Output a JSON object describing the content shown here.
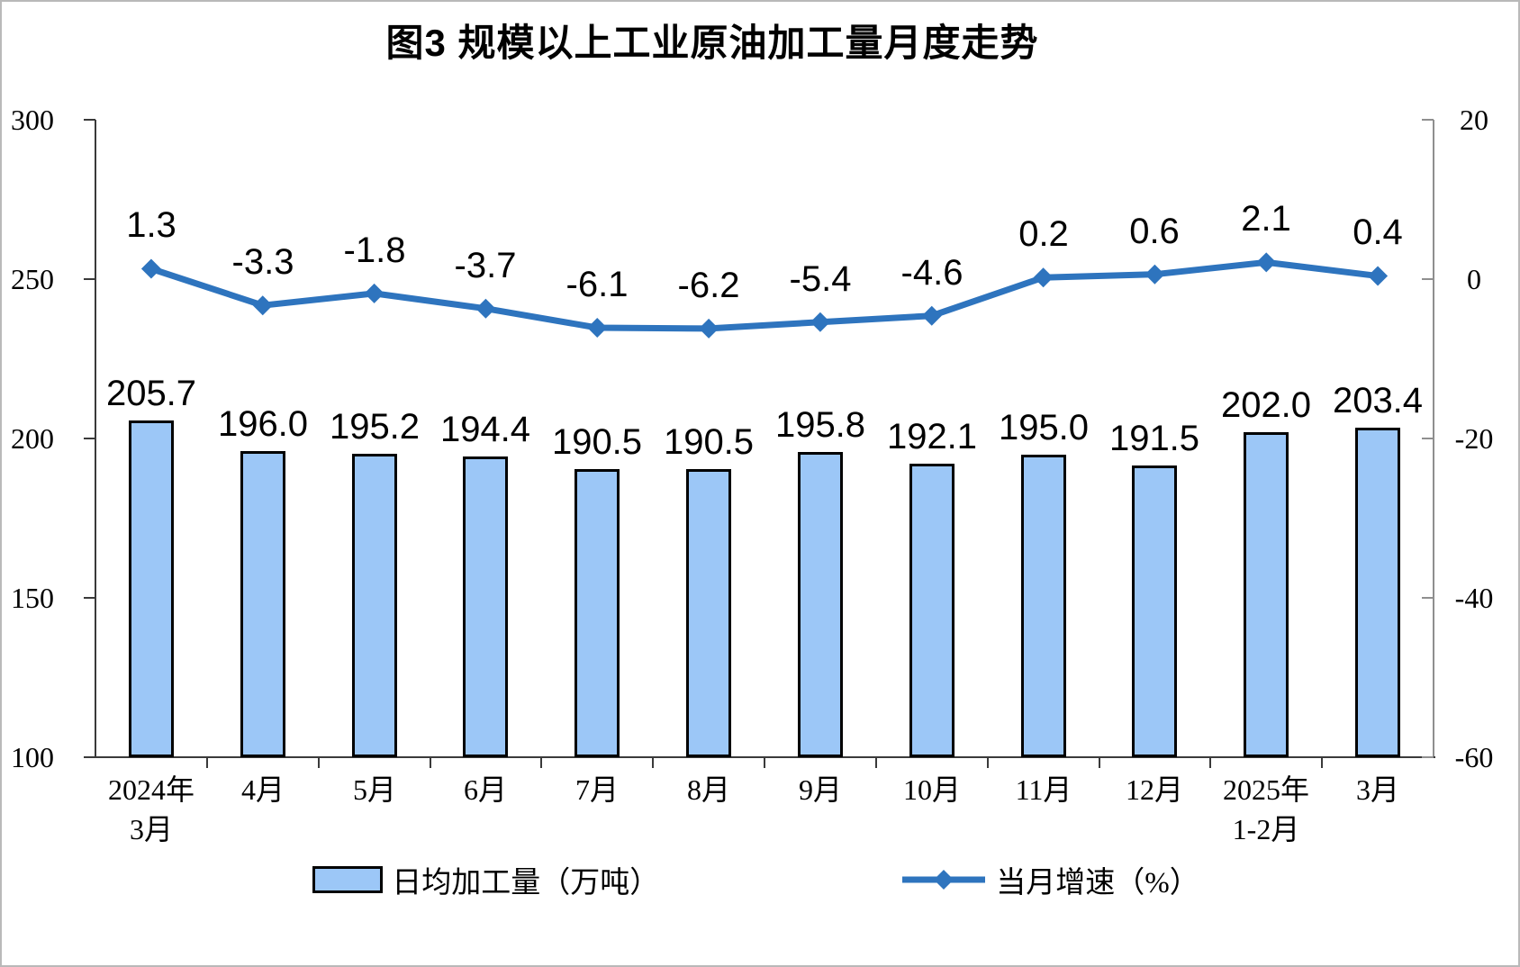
{
  "title": "图3 规模以上工业原油加工量月度走势",
  "chart_data": {
    "type": "combo-bar-line",
    "title": "图3 规模以上工业原油加工量月度走势",
    "categories": [
      [
        "2024年",
        "3月"
      ],
      [
        "4月"
      ],
      [
        "5月"
      ],
      [
        "6月"
      ],
      [
        "7月"
      ],
      [
        "8月"
      ],
      [
        "9月"
      ],
      [
        "10月"
      ],
      [
        "11月"
      ],
      [
        "12月"
      ],
      [
        "2025年",
        "1-2月"
      ],
      [
        "3月"
      ]
    ],
    "series": [
      {
        "name": "日均加工量（万吨）",
        "type": "bar",
        "axis": "left",
        "values": [
          205.7,
          196.0,
          195.2,
          194.4,
          190.5,
          190.5,
          195.8,
          192.1,
          195.0,
          191.5,
          202.0,
          203.4
        ],
        "color": "#9CC7F7",
        "border_color": "#000000"
      },
      {
        "name": "当月增速（%）",
        "type": "line",
        "axis": "right",
        "values": [
          1.3,
          -3.3,
          -1.8,
          -3.7,
          -6.1,
          -6.2,
          -5.4,
          -4.6,
          0.2,
          0.6,
          2.1,
          0.4
        ],
        "color": "#2E74BE",
        "marker": "diamond"
      }
    ],
    "left_axis": {
      "min": 100,
      "max": 300,
      "ticks": [
        300,
        250,
        200,
        150,
        100
      ]
    },
    "right_axis": {
      "min": -60,
      "max": 20,
      "ticks": [
        20,
        0,
        -20,
        -40,
        -60
      ]
    },
    "grid": false,
    "legend_position": "bottom",
    "value_labels_decimals": 1
  },
  "legend": {
    "bar_label": "日均加工量（万吨）",
    "line_label": "当月增速（%）"
  }
}
